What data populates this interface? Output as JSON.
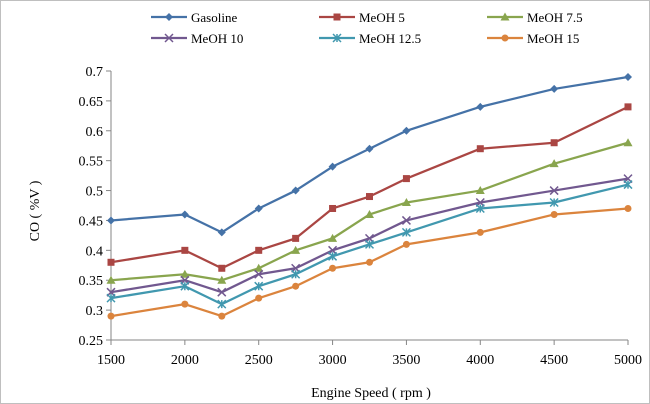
{
  "chart_data": {
    "type": "line",
    "title": "",
    "xlabel": "Engine Speed ( rpm )",
    "ylabel": "CO ( %V )",
    "x": [
      1500,
      2000,
      2250,
      2500,
      2750,
      3000,
      3250,
      3500,
      4000,
      4500,
      5000
    ],
    "xlim": [
      1500,
      5000
    ],
    "xticks": [
      "1500",
      "2000",
      "2500",
      "3000",
      "3500",
      "4000",
      "4500",
      "5000"
    ],
    "ylim": [
      0.25,
      0.7
    ],
    "yticks": [
      "0.25",
      "0.3",
      "0.35",
      "0.4",
      "0.45",
      "0.5",
      "0.55",
      "0.6",
      "0.65",
      "0.7"
    ],
    "grid": false,
    "legend_position": "top",
    "series": [
      {
        "name": "Gasoline",
        "color": "#4572A7",
        "marker": "diamond",
        "values": [
          0.45,
          0.46,
          0.43,
          0.47,
          0.5,
          0.54,
          0.57,
          0.6,
          0.64,
          0.67,
          0.69
        ]
      },
      {
        "name": "MeOH 5",
        "color": "#AA4643",
        "marker": "square",
        "values": [
          0.38,
          0.4,
          0.37,
          0.4,
          0.42,
          0.47,
          0.49,
          0.52,
          0.57,
          0.58,
          0.64
        ]
      },
      {
        "name": "MeOH 7.5",
        "color": "#89A54E",
        "marker": "triangle",
        "values": [
          0.35,
          0.36,
          0.35,
          0.37,
          0.4,
          0.42,
          0.46,
          0.48,
          0.5,
          0.545,
          0.58
        ]
      },
      {
        "name": "MeOH 10",
        "color": "#71588F",
        "marker": "x",
        "values": [
          0.33,
          0.35,
          0.33,
          0.36,
          0.37,
          0.4,
          0.42,
          0.45,
          0.48,
          0.5,
          0.52
        ]
      },
      {
        "name": "MeOH 12.5",
        "color": "#4198AF",
        "marker": "star",
        "values": [
          0.32,
          0.34,
          0.31,
          0.34,
          0.36,
          0.39,
          0.41,
          0.43,
          0.47,
          0.48,
          0.51
        ]
      },
      {
        "name": "MeOH 15",
        "color": "#DB843D",
        "marker": "circle",
        "values": [
          0.29,
          0.31,
          0.29,
          0.32,
          0.34,
          0.37,
          0.38,
          0.41,
          0.43,
          0.46,
          0.47
        ]
      }
    ]
  }
}
